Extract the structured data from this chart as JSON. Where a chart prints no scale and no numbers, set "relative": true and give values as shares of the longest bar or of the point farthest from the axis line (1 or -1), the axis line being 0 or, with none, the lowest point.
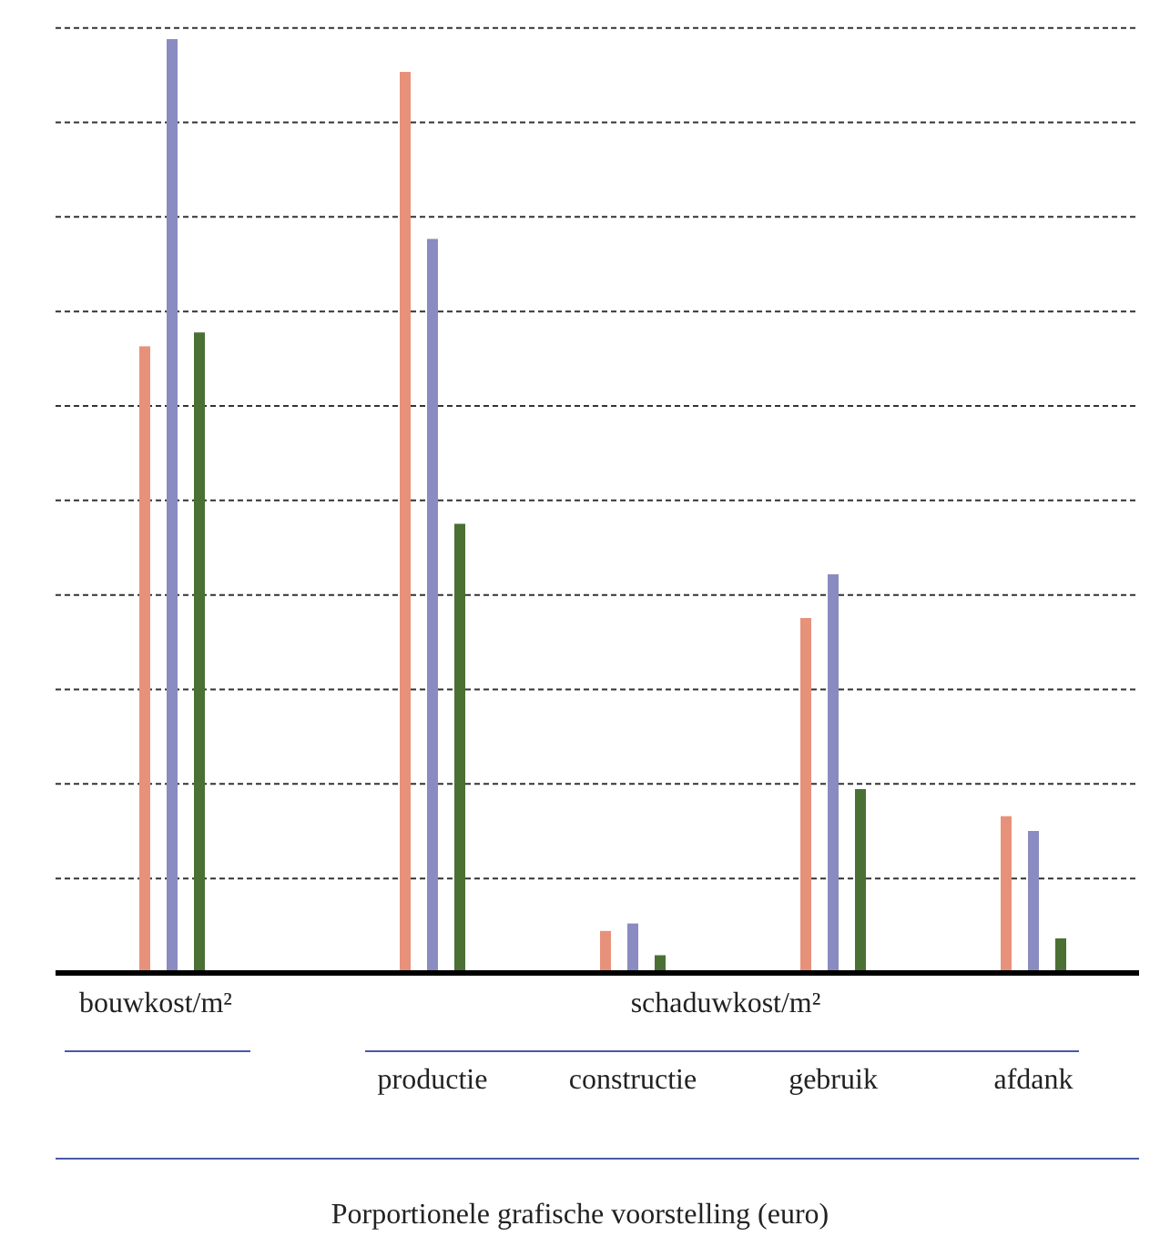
{
  "chart_data": {
    "type": "bar",
    "relative": true,
    "grid": "y",
    "categories": [
      "bouwkost/m²",
      "productie",
      "constructie",
      "gebruik",
      "afdank"
    ],
    "series": [
      {
        "color": "#e8917a",
        "values": [
          0.671,
          0.965,
          0.045,
          0.38,
          0.168
        ]
      },
      {
        "color": "#8a8bc0",
        "values": [
          1,
          0.786,
          0.053,
          0.427,
          0.152
        ]
      },
      {
        "color": "#4a7034",
        "values": [
          0.686,
          0.481,
          0.019,
          0.197,
          0.037
        ]
      }
    ],
    "annotations": [
      "schaduwkost/m²"
    ],
    "xlabel": "Porportionele grafische voorstelling (euro)"
  }
}
